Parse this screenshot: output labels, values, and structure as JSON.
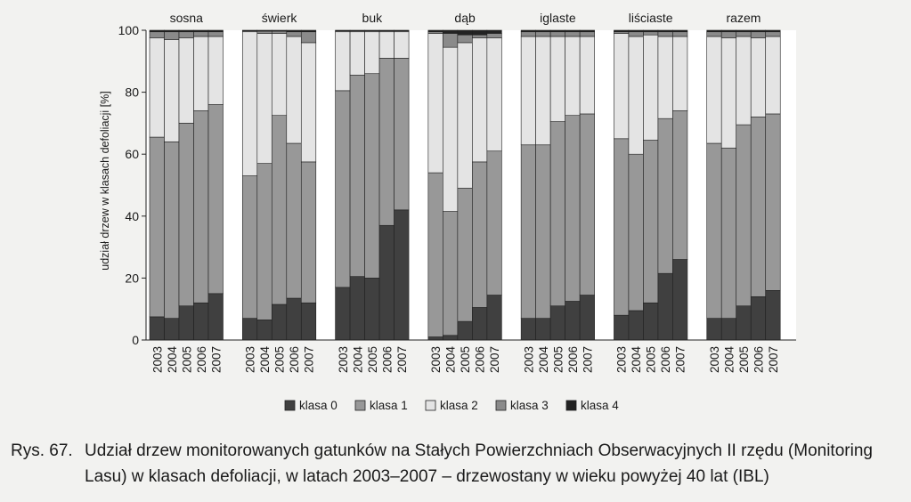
{
  "chart_data": {
    "type": "bar",
    "stacked": true,
    "ylabel": "udział drzew w klasach defoliacji [%]",
    "ylim": [
      0,
      100
    ],
    "yticks": [
      0,
      20,
      40,
      60,
      80,
      100
    ],
    "grid": false,
    "legend_position": "bottom",
    "series": [
      {
        "name": "klasa 0",
        "color": "#404040"
      },
      {
        "name": "klasa 1",
        "color": "#989898"
      },
      {
        "name": "klasa 2",
        "color": "#e4e4e4"
      },
      {
        "name": "klasa 3",
        "color": "#8a8a8a"
      },
      {
        "name": "klasa 4",
        "color": "#232323"
      }
    ],
    "groups": [
      {
        "name": "sosna",
        "years": [
          "2003",
          "2004",
          "2005",
          "2006",
          "2007"
        ],
        "values": [
          [
            7.5,
            58,
            32,
            2,
            0.5
          ],
          [
            7,
            57,
            33,
            2.5,
            0.5
          ],
          [
            11,
            59,
            27.5,
            2,
            0.5
          ],
          [
            12,
            62,
            24,
            1.5,
            0.5
          ],
          [
            15,
            61,
            22,
            1.5,
            0.5
          ]
        ]
      },
      {
        "name": "świerk",
        "years": [
          "2003",
          "2004",
          "2005",
          "2006",
          "2007"
        ],
        "values": [
          [
            7,
            46,
            46.5,
            0.3,
            0.2
          ],
          [
            6.5,
            50.5,
            42,
            0.7,
            0.3
          ],
          [
            11.5,
            61,
            26.5,
            0.7,
            0.3
          ],
          [
            13.5,
            50,
            34.5,
            1.5,
            0.5
          ],
          [
            12,
            45.5,
            38.5,
            3.5,
            0.5
          ]
        ]
      },
      {
        "name": "buk",
        "years": [
          "2003",
          "2004",
          "2005",
          "2006",
          "2007"
        ],
        "values": [
          [
            17,
            63.5,
            19,
            0.3,
            0.2
          ],
          [
            20.5,
            65,
            14,
            0.3,
            0.2
          ],
          [
            20,
            66,
            13.5,
            0.3,
            0.2
          ],
          [
            37,
            54,
            8.5,
            0.3,
            0.2
          ],
          [
            42,
            49,
            8.5,
            0.3,
            0.2
          ]
        ]
      },
      {
        "name": "dąb",
        "years": [
          "2003",
          "2004",
          "2005",
          "2006",
          "2007"
        ],
        "values": [
          [
            1,
            53,
            45,
            0.5,
            0.5
          ],
          [
            1.5,
            40,
            53,
            4.5,
            1
          ],
          [
            6,
            43,
            47,
            2.5,
            1.5
          ],
          [
            10.5,
            47,
            40,
            1,
            1.5
          ],
          [
            14.5,
            46.5,
            36.5,
            1.5,
            1
          ]
        ]
      },
      {
        "name": "iglaste",
        "years": [
          "2003",
          "2004",
          "2005",
          "2006",
          "2007"
        ],
        "values": [
          [
            7,
            56,
            35,
            1.5,
            0.5
          ],
          [
            7,
            56,
            35,
            1.5,
            0.5
          ],
          [
            11,
            59.5,
            27.5,
            1.5,
            0.5
          ],
          [
            12.5,
            60,
            25.5,
            1.5,
            0.5
          ],
          [
            14.5,
            58.5,
            25,
            1.5,
            0.5
          ]
        ]
      },
      {
        "name": "liściaste",
        "years": [
          "2003",
          "2004",
          "2005",
          "2006",
          "2007"
        ],
        "values": [
          [
            8,
            57,
            34,
            0.5,
            0.5
          ],
          [
            9.5,
            50.5,
            38,
            1.5,
            0.5
          ],
          [
            12,
            52.5,
            34,
            1,
            0.5
          ],
          [
            21.5,
            50,
            26.5,
            1.5,
            0.5
          ],
          [
            26,
            48,
            24,
            1.5,
            0.5
          ]
        ]
      },
      {
        "name": "razem",
        "years": [
          "2003",
          "2004",
          "2005",
          "2006",
          "2007"
        ],
        "values": [
          [
            7,
            56.5,
            34.5,
            1.5,
            0.5
          ],
          [
            7,
            55,
            35.5,
            2,
            0.5
          ],
          [
            11,
            58.5,
            28.5,
            1.5,
            0.5
          ],
          [
            14,
            58,
            25.5,
            2,
            0.5
          ],
          [
            16,
            57,
            25,
            1.5,
            0.5
          ]
        ]
      }
    ]
  },
  "caption": {
    "label": "Rys. 67.",
    "text": "Udział drzew monitorowanych gatunków na Stałych Powierzchniach Obserwacyjnych II rzędu (Monitoring Lasu) w klasach defoliacji, w latach 2003–2007 – drzewostany w wieku powyżej 40 lat (IBL)"
  }
}
